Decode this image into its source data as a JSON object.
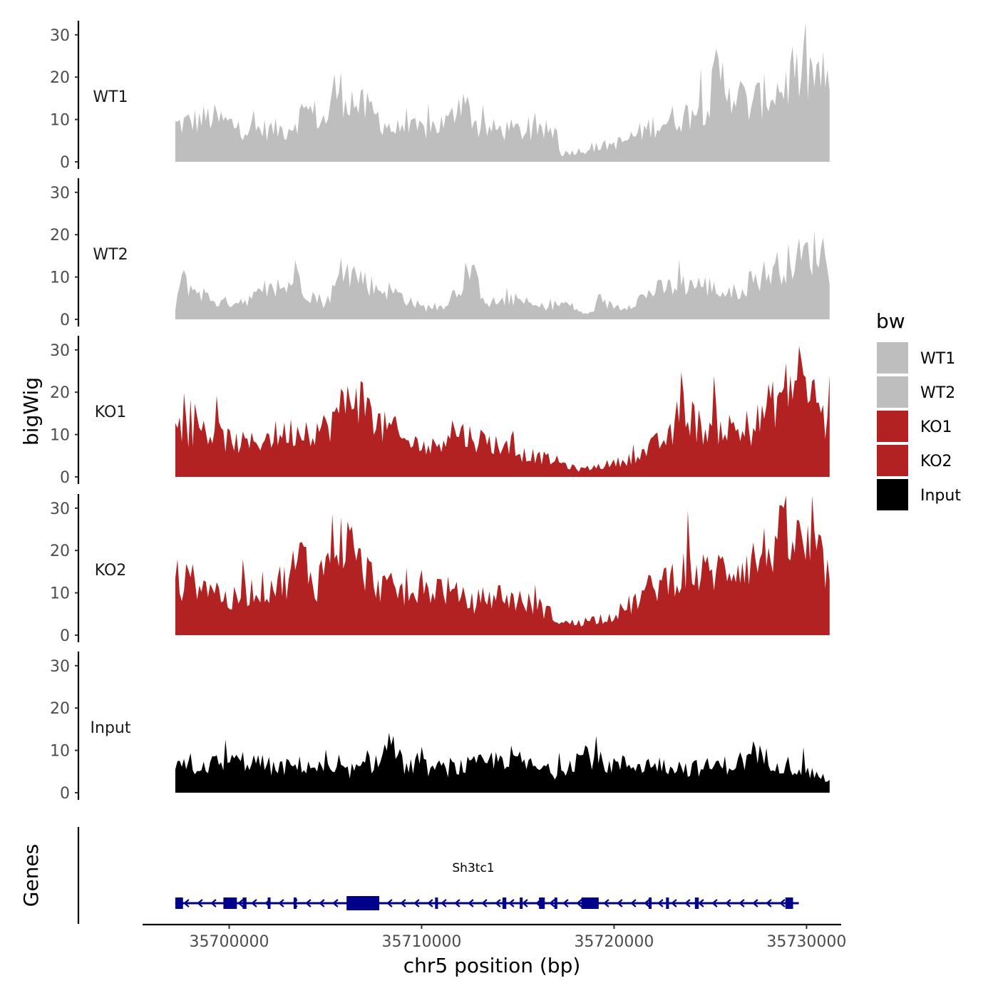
{
  "chart_data": {
    "type": "area",
    "title": "",
    "ylabel": "bigWig",
    "xlabel": "chr5 position (bp)",
    "xlim": [
      35695500,
      35731800
    ],
    "ylim": [
      0,
      33
    ],
    "y_ticks": [
      0,
      10,
      20,
      30
    ],
    "x_ticks": [
      35700000,
      35710000,
      35720000,
      35730000
    ],
    "x_tick_labels": [
      "35700000",
      "35710000",
      "35720000",
      "35730000"
    ],
    "data_range": [
      35697200,
      35731200
    ],
    "legend": {
      "title": "bw",
      "placement": "right",
      "entries": [
        {
          "label": "WT1",
          "color": "#bebebe"
        },
        {
          "label": "WT2",
          "color": "#bebebe"
        },
        {
          "label": "KO1",
          "color": "#b22222"
        },
        {
          "label": "KO2",
          "color": "#b22222"
        },
        {
          "label": "Input",
          "color": "#000000"
        }
      ]
    },
    "series": [
      {
        "name": "WT1",
        "color": "#bebebe",
        "anchor_x": [
          35697200,
          35699000,
          35701000,
          35703000,
          35704000,
          35705000,
          35705500,
          35706000,
          35706700,
          35707500,
          35708500,
          35710000,
          35711500,
          35712000,
          35713000,
          35714500,
          35716000,
          35717000,
          35717200,
          35718500,
          35719500,
          35720500,
          35722000,
          35724000,
          35725000,
          35725300,
          35727000,
          35728500,
          35729500,
          35730500,
          35731000,
          35731200
        ],
        "anchor_y": [
          9,
          11,
          8,
          8,
          13,
          10,
          18,
          17,
          14,
          12,
          8,
          8,
          10,
          17,
          8,
          8,
          7,
          8,
          2,
          3,
          4,
          5,
          9,
          12,
          15,
          22,
          14,
          18,
          21,
          22,
          20,
          15
        ]
      },
      {
        "name": "WT2",
        "color": "#bebebe",
        "anchor_x": [
          35697200,
          35697500,
          35698000,
          35699500,
          35701000,
          35702000,
          35703000,
          35703500,
          35704000,
          35705000,
          35706000,
          35706700,
          35707500,
          35708500,
          35710000,
          35711000,
          35712000,
          35712500,
          35713500,
          35715000,
          35716000,
          35717500,
          35718600,
          35719200,
          35720500,
          35722000,
          35724000,
          35725000,
          35726000,
          35727000,
          35728500,
          35729500,
          35730500,
          35731000,
          35731200
        ],
        "anchor_y": [
          3,
          10,
          8,
          4,
          5,
          7,
          8,
          12,
          7,
          4,
          12,
          11,
          8,
          7,
          3,
          3,
          8,
          12,
          4,
          5,
          3,
          4,
          1,
          4,
          3,
          7,
          9,
          8,
          6,
          9,
          13,
          15,
          17,
          17,
          13
        ]
      },
      {
        "name": "KO1",
        "color": "#b22222",
        "anchor_x": [
          35697200,
          35697500,
          35698500,
          35700000,
          35701000,
          35702000,
          35703000,
          35704000,
          35705000,
          35706000,
          35706500,
          35707000,
          35708000,
          35708500,
          35709000,
          35710000,
          35710500,
          35711500,
          35712500,
          35714000,
          35715000,
          35716000,
          35717000,
          35718000,
          35718500,
          35719500,
          35720500,
          35721500,
          35722500,
          35723000,
          35723500,
          35724500,
          35726000,
          35727000,
          35728000,
          35729000,
          35729800,
          35730500,
          35731000,
          35731200
        ],
        "anchor_y": [
          18,
          11,
          12,
          9,
          8,
          10,
          11,
          12,
          12,
          18,
          22,
          18,
          12,
          12,
          9,
          8,
          7,
          12,
          10,
          8,
          6,
          5,
          4,
          2,
          2,
          3,
          4,
          6,
          9,
          10,
          18,
          12,
          12,
          11,
          17,
          22,
          25,
          19,
          13,
          20
        ]
      },
      {
        "name": "KO2",
        "color": "#b22222",
        "anchor_x": [
          35697200,
          35698000,
          35699000,
          35700000,
          35701000,
          35702000,
          35703000,
          35703800,
          35704500,
          35705500,
          35706200,
          35707000,
          35708000,
          35709500,
          35711000,
          35712500,
          35714000,
          35715500,
          35716500,
          35717300,
          35718000,
          35719000,
          35720000,
          35721000,
          35722000,
          35723500,
          35724500,
          35726000,
          35727500,
          35728500,
          35729500,
          35730500,
          35731200
        ],
        "anchor_y": [
          11,
          14,
          13,
          8,
          11,
          12,
          14,
          20,
          12,
          25,
          22,
          16,
          12,
          10,
          12,
          8,
          10,
          8,
          6,
          3,
          3,
          4,
          5,
          8,
          12,
          16,
          15,
          17,
          19,
          24,
          23,
          20,
          15
        ]
      },
      {
        "name": "Input",
        "color": "#000000",
        "anchor_x": [
          35697200,
          35699000,
          35701000,
          35702500,
          35704000,
          35705500,
          35707000,
          35708000,
          35708300,
          35709000,
          35710500,
          35711500,
          35713000,
          35714500,
          35716000,
          35717000,
          35718500,
          35719500,
          35721000,
          35722500,
          35724000,
          35726000,
          35727500,
          35729000,
          35730800,
          35731200
        ],
        "anchor_y": [
          6,
          7,
          8,
          6,
          7,
          5,
          6,
          9,
          13,
          7,
          6,
          6,
          7,
          9,
          6,
          5,
          10,
          7,
          7,
          7,
          6,
          7,
          9,
          7,
          4,
          3
        ]
      }
    ],
    "gene_track": {
      "ylabel": "Genes",
      "gene_name": "Sh3tc1",
      "strand": "-",
      "start": 35697200,
      "end": 35729600,
      "exons": [
        {
          "start": 35697200,
          "end": 35697600
        },
        {
          "start": 35699700,
          "end": 35700400
        },
        {
          "start": 35700700,
          "end": 35700900
        },
        {
          "start": 35702000,
          "end": 35702150
        },
        {
          "start": 35703350,
          "end": 35703500
        },
        {
          "start": 35706100,
          "end": 35707800
        },
        {
          "start": 35710700,
          "end": 35710850
        },
        {
          "start": 35714200,
          "end": 35714400
        },
        {
          "start": 35715100,
          "end": 35715250
        },
        {
          "start": 35716100,
          "end": 35716400
        },
        {
          "start": 35716900,
          "end": 35717050
        },
        {
          "start": 35718300,
          "end": 35719200
        },
        {
          "start": 35721800,
          "end": 35721950
        },
        {
          "start": 35722700,
          "end": 35722850
        },
        {
          "start": 35724200,
          "end": 35724400
        },
        {
          "start": 35728900,
          "end": 35729300
        }
      ]
    }
  }
}
